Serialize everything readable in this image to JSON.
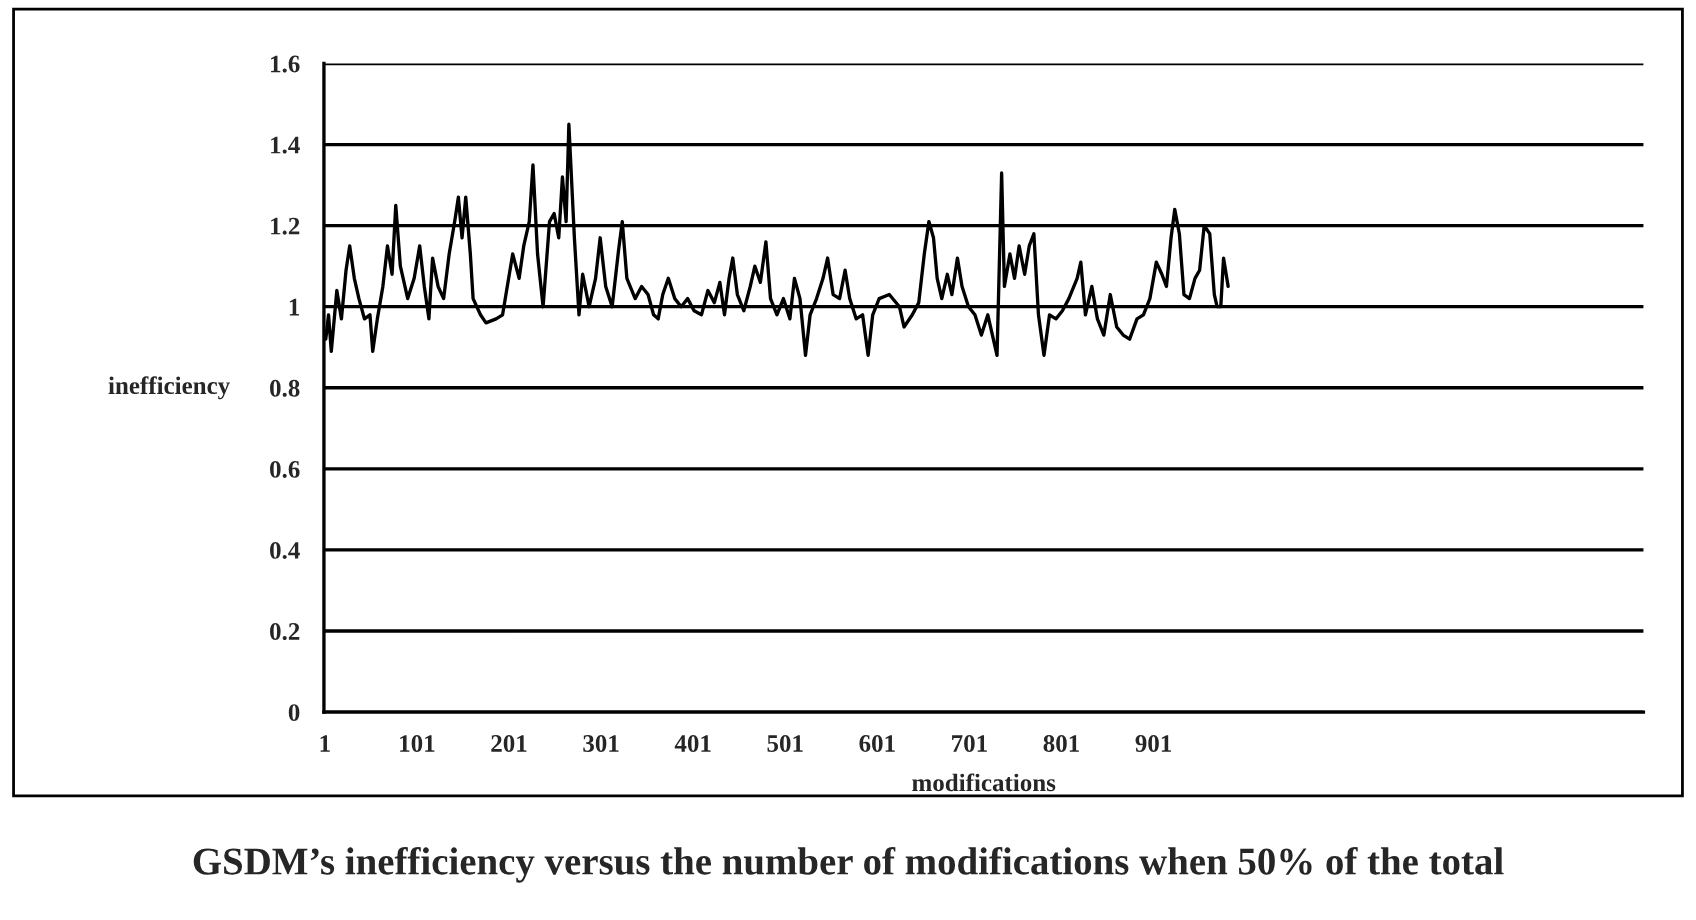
{
  "chart_data": {
    "type": "line",
    "xlabel": "modifications",
    "ylabel": "inefficiency",
    "annotations": [
      "GSDM’s inefficiency versus the number of modifications when 50% of the total"
    ],
    "xlim": [
      0,
      1433
    ],
    "xticks": [
      1,
      101,
      201,
      301,
      401,
      501,
      601,
      701,
      801,
      901
    ],
    "ylim": [
      0,
      1.6
    ],
    "yticks": [
      0,
      0.2,
      0.4,
      0.6,
      0.8,
      1,
      1.2,
      1.4,
      1.6
    ],
    "grid": "y",
    "legend": false,
    "marker": "none",
    "line_style": "solid",
    "series": [
      {
        "color": "#000000",
        "x": [
          2,
          5,
          8,
          14,
          19,
          24,
          28,
          33,
          38,
          44,
          50,
          53,
          58,
          64,
          69,
          74,
          78,
          83,
          91,
          98,
          104,
          109,
          114,
          118,
          124,
          130,
          136,
          142,
          146,
          150,
          154,
          159,
          162,
          170,
          176,
          187,
          194,
          205,
          212,
          217,
          223,
          227,
          232,
          238,
          245,
          250,
          255,
          259,
          263,
          266,
          272,
          277,
          281,
          288,
          295,
          300,
          306,
          313,
          320,
          324,
          329,
          338,
          345,
          352,
          358,
          363,
          368,
          374,
          381,
          388,
          395,
          402,
          410,
          417,
          424,
          430,
          435,
          440,
          444,
          449,
          456,
          463,
          468,
          474,
          480,
          485,
          492,
          499,
          506,
          511,
          517,
          523,
          528,
          535,
          542,
          547,
          553,
          560,
          566,
          571,
          578,
          585,
          591,
          596,
          603,
          614,
          625,
          630,
          639,
          646,
          652,
          657,
          662,
          666,
          671,
          677,
          682,
          688,
          693,
          700,
          707,
          714,
          721,
          726,
          731,
          736,
          739,
          745,
          750,
          755,
          761,
          766,
          771,
          776,
          782,
          788,
          795,
          802,
          809,
          818,
          822,
          827,
          834,
          840,
          847,
          854,
          861,
          868,
          875,
          883,
          890,
          897,
          904,
          910,
          915,
          920,
          924,
          929,
          934,
          940,
          946,
          951,
          956,
          962,
          967,
          970,
          974,
          977,
          982
        ],
        "values": [
          0.92,
          0.98,
          0.89,
          1.04,
          0.97,
          1.09,
          1.15,
          1.07,
          1.02,
          0.97,
          0.98,
          0.89,
          0.97,
          1.05,
          1.15,
          1.08,
          1.25,
          1.1,
          1.02,
          1.07,
          1.15,
          1.05,
          0.97,
          1.12,
          1.05,
          1.02,
          1.13,
          1.21,
          1.27,
          1.17,
          1.27,
          1.13,
          1.02,
          0.98,
          0.96,
          0.97,
          0.98,
          1.13,
          1.07,
          1.15,
          1.21,
          1.35,
          1.13,
          1.0,
          1.21,
          1.23,
          1.17,
          1.32,
          1.21,
          1.45,
          1.17,
          0.98,
          1.08,
          1.0,
          1.07,
          1.17,
          1.05,
          1.0,
          1.14,
          1.21,
          1.07,
          1.02,
          1.05,
          1.03,
          0.98,
          0.97,
          1.03,
          1.07,
          1.02,
          1.0,
          1.02,
          0.99,
          0.98,
          1.04,
          1.01,
          1.06,
          0.98,
          1.07,
          1.12,
          1.03,
          0.99,
          1.05,
          1.1,
          1.06,
          1.16,
          1.02,
          0.98,
          1.02,
          0.97,
          1.07,
          1.02,
          0.88,
          0.98,
          1.02,
          1.07,
          1.12,
          1.03,
          1.02,
          1.09,
          1.02,
          0.97,
          0.98,
          0.88,
          0.98,
          1.02,
          1.03,
          1.0,
          0.95,
          0.98,
          1.01,
          1.13,
          1.21,
          1.17,
          1.07,
          1.02,
          1.08,
          1.03,
          1.12,
          1.05,
          1.0,
          0.98,
          0.93,
          0.98,
          0.93,
          0.88,
          1.33,
          1.05,
          1.13,
          1.07,
          1.15,
          1.08,
          1.15,
          1.18,
          0.98,
          0.88,
          0.98,
          0.97,
          0.99,
          1.02,
          1.07,
          1.11,
          0.98,
          1.05,
          0.97,
          0.93,
          1.03,
          0.95,
          0.93,
          0.92,
          0.97,
          0.98,
          1.02,
          1.11,
          1.08,
          1.05,
          1.17,
          1.24,
          1.18,
          1.03,
          1.02,
          1.07,
          1.09,
          1.2,
          1.18,
          1.03,
          1.0,
          1.0,
          1.12,
          1.05
        ]
      }
    ]
  }
}
